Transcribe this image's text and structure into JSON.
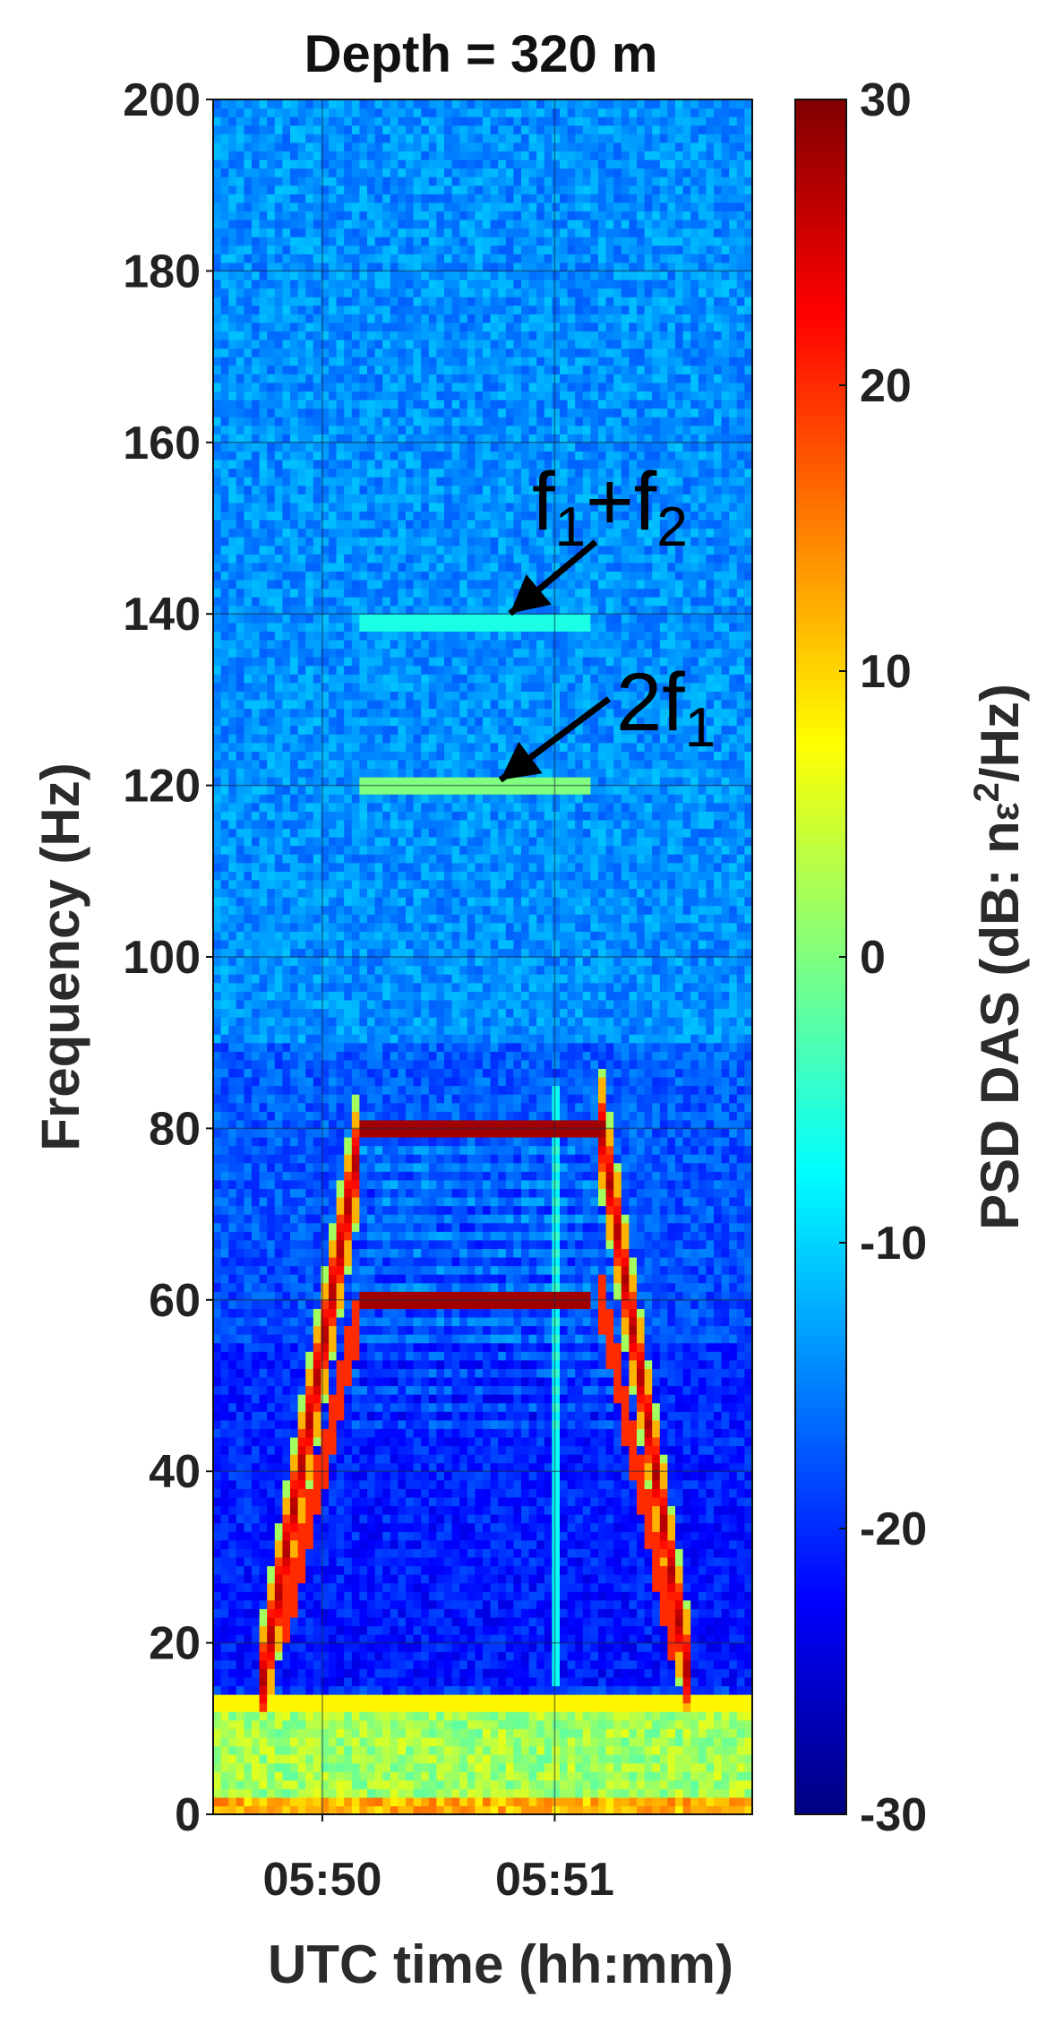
{
  "chart_data": {
    "type": "heatmap",
    "title": "Depth = 320 m",
    "xlabel": "UTC time (hh:mm)",
    "ylabel": "Frequency (Hz)",
    "colorbar_label": "PSD DAS (dB: nε²/Hz)",
    "colorbar_label_parts": {
      "main": "PSD DAS (dB: n",
      "eps": "ε",
      "sup": "2",
      "tail": "/Hz)"
    },
    "ylim": [
      0,
      200
    ],
    "yticks": [
      0,
      20,
      40,
      60,
      80,
      100,
      120,
      140,
      160,
      180,
      200
    ],
    "ytick_labels": [
      "0",
      "20",
      "40",
      "60",
      "80",
      "100",
      "120",
      "140",
      "160",
      "180",
      "200"
    ],
    "xlim_minutes": [
      -0.47,
      1.85
    ],
    "xticks_minutes": [
      0,
      1
    ],
    "xtick_labels": [
      "05:50",
      "05:51"
    ],
    "clim": [
      -30,
      30
    ],
    "cticks": [
      -30,
      -20,
      -10,
      0,
      10,
      20,
      30
    ],
    "ctick_labels": [
      "-30",
      "-20",
      "-10",
      "0",
      "10",
      "20",
      "30"
    ],
    "colormap": "jet",
    "grid": true,
    "annotations": [
      {
        "text_main": "f",
        "sub1": "1",
        "plus": "+f",
        "sub2": "2",
        "target_minutes": 0.8,
        "target_hz": 139
      },
      {
        "text_main": "2f",
        "sub1": "1",
        "target_minutes": 0.72,
        "target_hz": 120
      }
    ],
    "features": {
      "background_psd_db": -14,
      "low_freq_band": {
        "from_hz": 0,
        "to_hz": 13,
        "psd_db": 2
      },
      "line_13hz_db": 8,
      "ramp_up": {
        "t_start_min": -0.26,
        "t_end_min": 0.17,
        "f_start_hz": 15,
        "f_end_hz": 80
      },
      "ramp_down": {
        "t_start_min": 1.2,
        "t_end_min": 1.58,
        "f_start_hz": 80,
        "f_end_hz": 15
      },
      "tone_80hz": {
        "t_start_min": 0.15,
        "t_end_min": 1.22,
        "psd_db": 28
      },
      "tone_60hz": {
        "t_start_min": 0.15,
        "t_end_min": 1.15,
        "psd_db": 28
      },
      "tone_120hz": {
        "t_start_min": 0.15,
        "t_end_min": 1.15,
        "psd_db": 0
      },
      "tone_139hz": {
        "t_start_min": 0.15,
        "t_end_min": 1.15,
        "psd_db": -6
      },
      "vertical_streak_min": 1.0
    }
  }
}
